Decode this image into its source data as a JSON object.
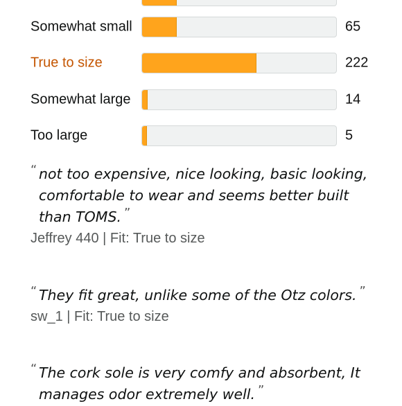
{
  "fit_breakdown": [
    {
      "label": "",
      "count": "",
      "fraction": 0.18
    },
    {
      "label": "Somewhat small",
      "count": "65",
      "fraction": 0.18,
      "selected": false
    },
    {
      "label": "True to size",
      "count": "222",
      "fraction": 0.59,
      "selected": true
    },
    {
      "label": "Somewhat large",
      "count": "14",
      "fraction": 0.03,
      "selected": false
    },
    {
      "label": "Too large",
      "count": "5",
      "fraction": 0.01,
      "selected": false
    }
  ],
  "reviews": [
    {
      "quote": "not too expensive, nice looking, basic looking, comfortable to wear and seems better built than TOMS.",
      "reviewer": "Jeffrey 440 | Fit: True to size"
    },
    {
      "quote": "They fit great, unlike some of the Otz colors.",
      "reviewer": "sw_1 | Fit: True to size"
    },
    {
      "quote": "The cork sole is very comfy and absorbent, It manages odor extremely well.",
      "reviewer": ""
    }
  ],
  "quote_open": "“",
  "quote_close": "”",
  "colors": {
    "bar_fill": "#ffa41c",
    "bar_track": "#f0f2f2",
    "selected_label": "#c45500"
  }
}
